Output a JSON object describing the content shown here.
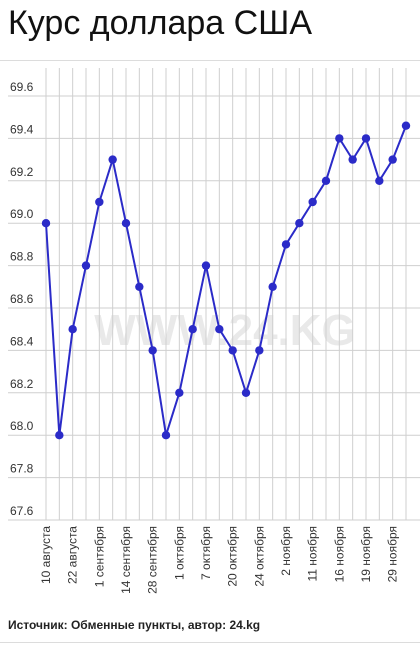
{
  "header": {
    "title": "Курс доллара США"
  },
  "footer": {
    "source": "Источник: Обменные пункты, автор: 24.kg"
  },
  "watermark": "WWW.24.KG",
  "colors": {
    "series": "#2b2bc8",
    "grid": "#cfcfcf",
    "axis_text": "#333333",
    "watermark": "#e9e9e9"
  },
  "chart_data": {
    "type": "line",
    "title": "Курс доллара США",
    "xlabel": "",
    "ylabel": "",
    "ylim": [
      67.6,
      69.6
    ],
    "y_ticks": [
      "67.6",
      "67.8",
      "68.0",
      "68.2",
      "68.4",
      "68.6",
      "68.8",
      "69.0",
      "69.2",
      "69.4",
      "69.6"
    ],
    "x_tick_labels": [
      {
        "index": 0,
        "label": "10 августа"
      },
      {
        "index": 2,
        "label": "22 августа"
      },
      {
        "index": 4,
        "label": "1 сентября"
      },
      {
        "index": 6,
        "label": "14 сентября"
      },
      {
        "index": 8,
        "label": "28 сентября"
      },
      {
        "index": 10,
        "label": "1 октября"
      },
      {
        "index": 12,
        "label": "7 октября"
      },
      {
        "index": 14,
        "label": "20 октября"
      },
      {
        "index": 16,
        "label": "24 октября"
      },
      {
        "index": 18,
        "label": "2 ноября"
      },
      {
        "index": 20,
        "label": "11 ноября"
      },
      {
        "index": 22,
        "label": "16 ноября"
      },
      {
        "index": 24,
        "label": "19 ноября"
      },
      {
        "index": 26,
        "label": "29 ноября"
      }
    ],
    "grid": true,
    "legend": "none",
    "series": [
      {
        "values": [
          69.0,
          68.0,
          68.5,
          68.8,
          69.1,
          69.3,
          69.0,
          68.7,
          68.4,
          68.0,
          68.2,
          68.5,
          68.8,
          68.5,
          68.4,
          68.2,
          68.4,
          68.7,
          68.9,
          69.0,
          69.1,
          69.2,
          69.4,
          69.3,
          69.4,
          69.2,
          69.3,
          69.46
        ]
      }
    ]
  }
}
